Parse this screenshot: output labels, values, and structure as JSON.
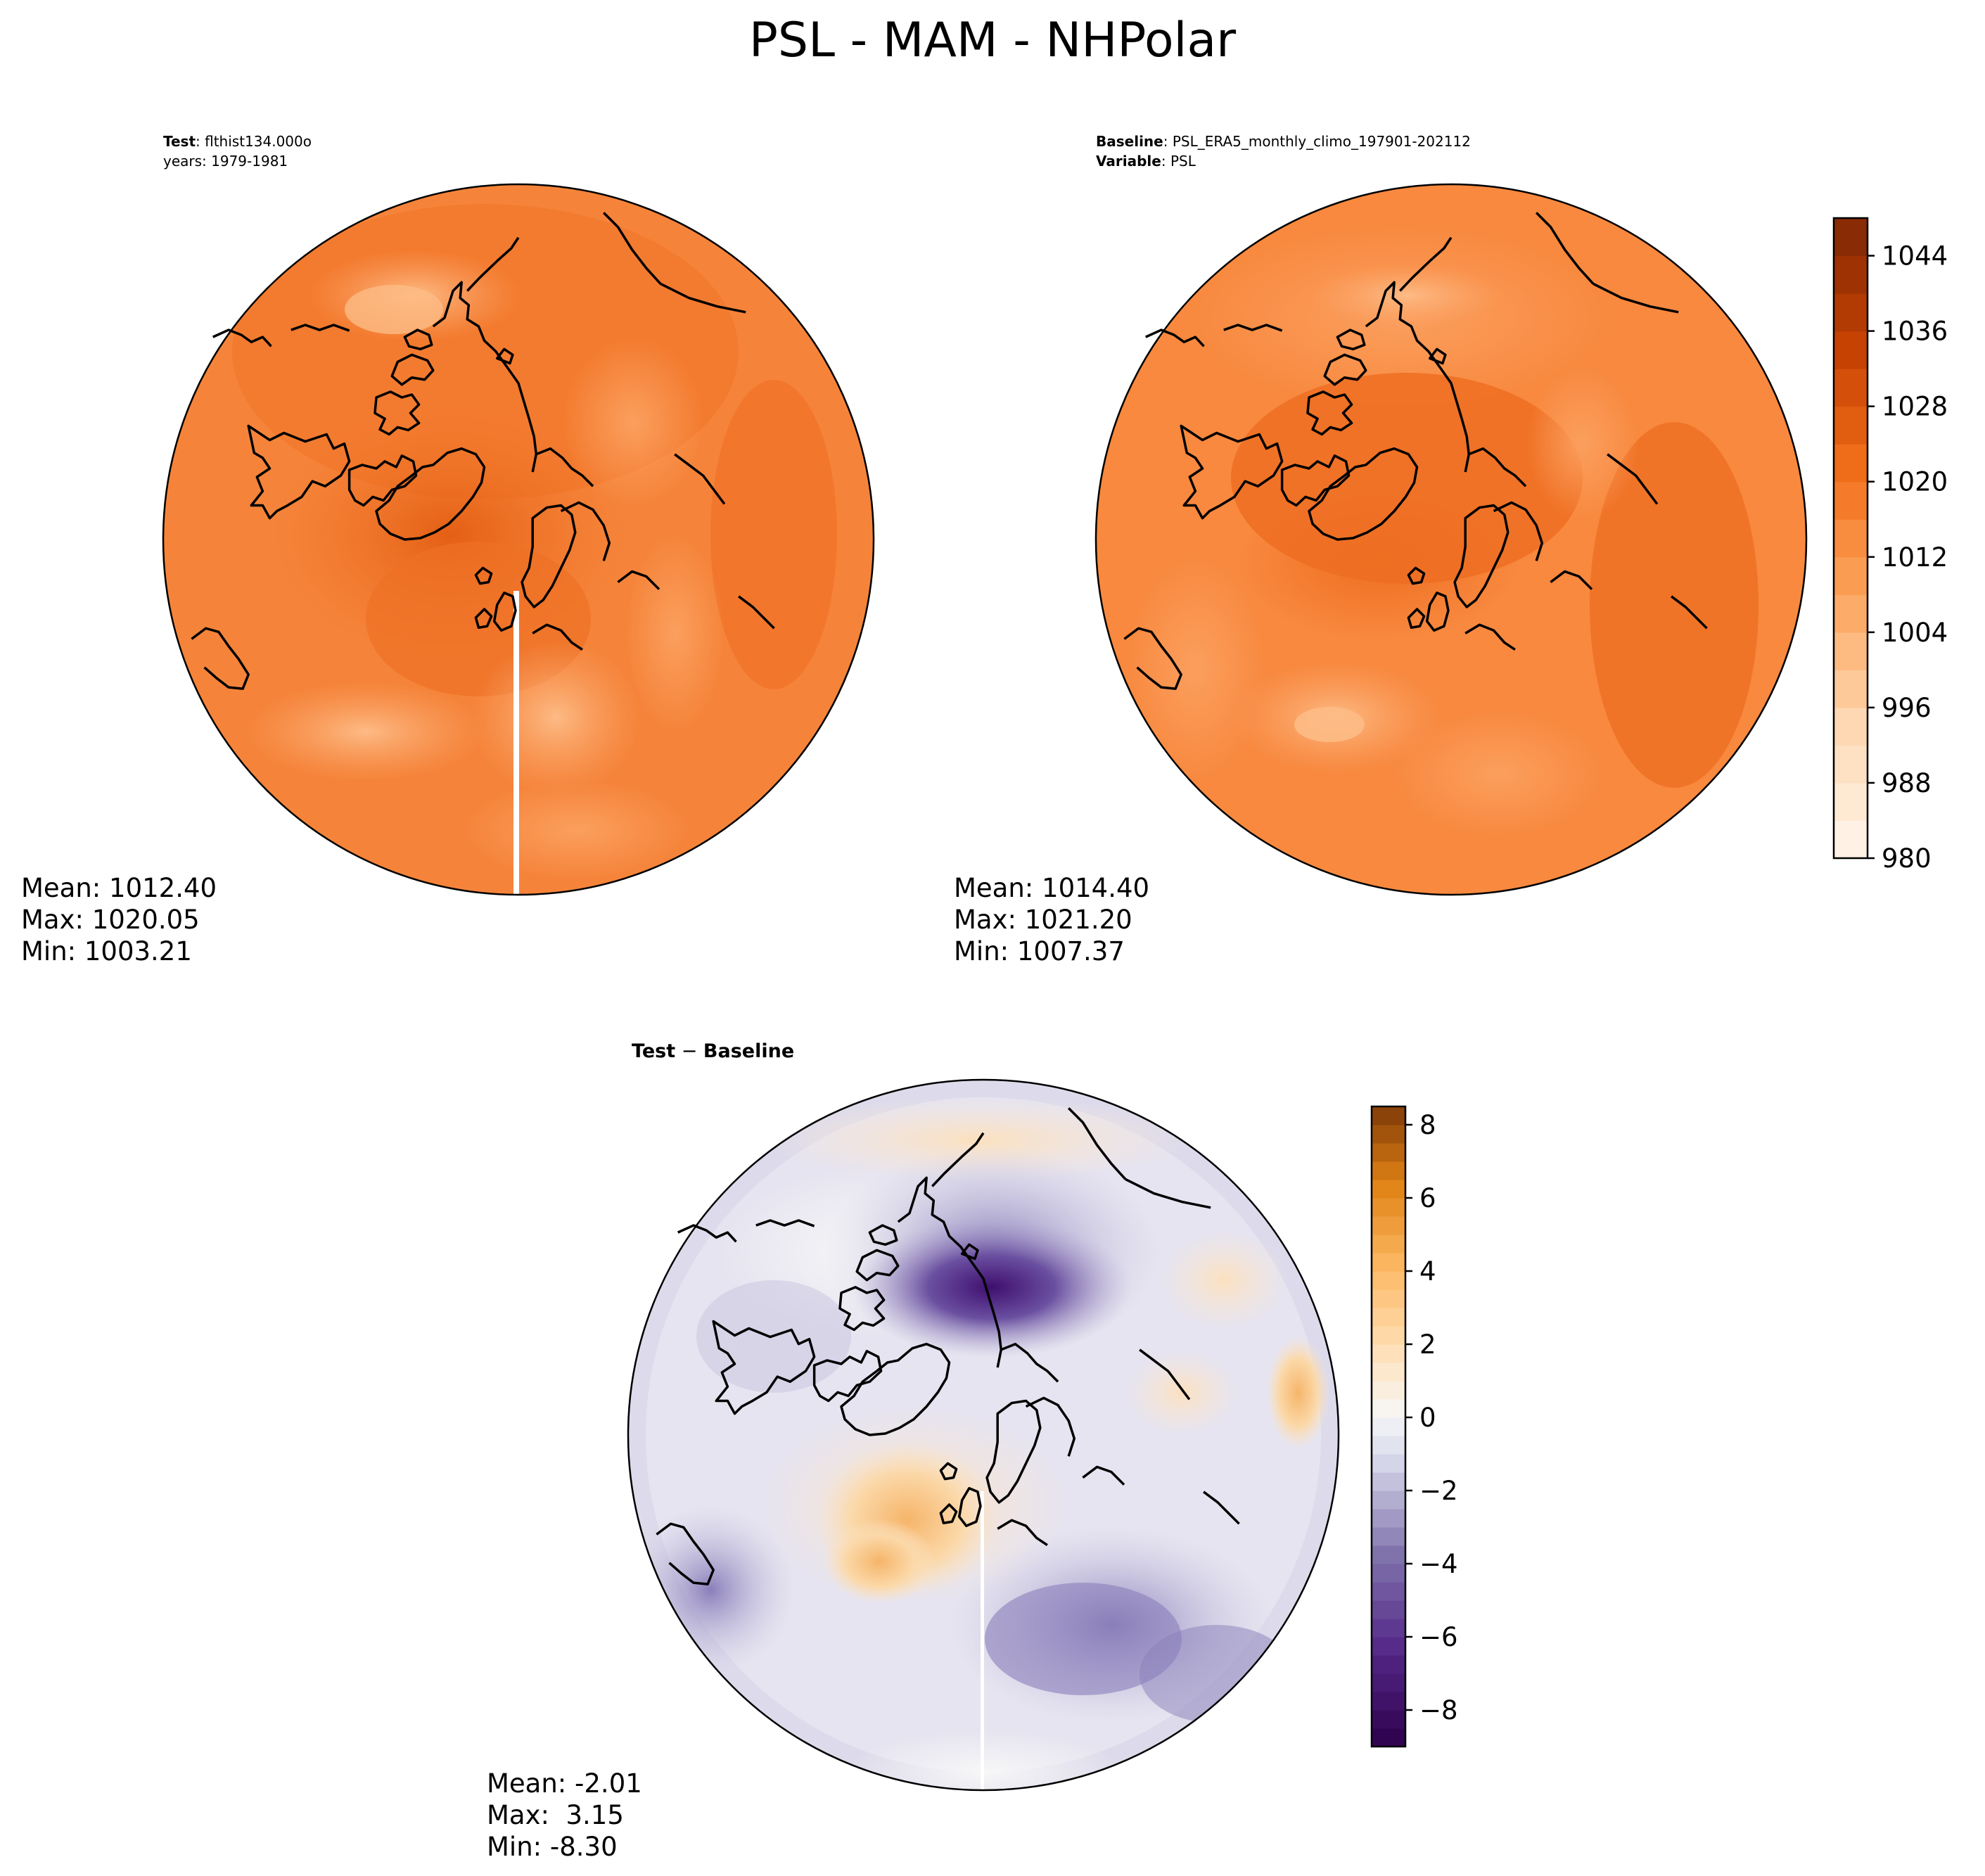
{
  "figure": {
    "title": "PSL - MAM - NHPolar"
  },
  "colors": {
    "ocean_base": "#f5843a",
    "coast": "#000000",
    "diff_neutral": "#f2f1f5"
  },
  "chart_data": [
    {
      "type": "heatmap",
      "name": "test",
      "header": [
        {
          "bold": "Test",
          "rest": ": flthist134.000o"
        },
        {
          "bold": "",
          "rest": "years: 1979-1981"
        }
      ],
      "stats": [
        "Mean: 1012.40",
        "Max: 1020.05",
        "Min: 1003.21"
      ],
      "mean": 1012.4,
      "max": 1020.05,
      "min": 1003.21,
      "colorscale": "Oranges"
    },
    {
      "type": "heatmap",
      "name": "baseline",
      "header": [
        {
          "bold": "Baseline",
          "rest": ": PSL_ERA5_monthly_climo_197901-202112"
        },
        {
          "bold": "Variable",
          "rest": ": PSL"
        }
      ],
      "stats": [
        "Mean: 1014.40",
        "Max: 1021.20",
        "Min: 1007.37"
      ],
      "mean": 1014.4,
      "max": 1021.2,
      "min": 1007.37,
      "colorbar": {
        "range": [
          980,
          1048
        ],
        "step": 4,
        "tick_labels": [
          "980",
          "988",
          "996",
          "1004",
          "1012",
          "1020",
          "1028",
          "1036",
          "1044"
        ],
        "ticks": [
          980,
          988,
          996,
          1004,
          1012,
          1020,
          1028,
          1036,
          1044
        ]
      },
      "colorscale": "Oranges"
    },
    {
      "type": "heatmap",
      "name": "difference",
      "header": [
        {
          "bold": "Test",
          "rest": " − ",
          "bold2": "Baseline"
        }
      ],
      "stats": [
        "Mean: -2.01",
        "Max:  3.15",
        "Min: -8.30"
      ],
      "mean": -2.01,
      "max": 3.15,
      "min": -8.3,
      "colorbar": {
        "range": [
          -9,
          8.5
        ],
        "tick_labels": [
          "−8",
          "−6",
          "−4",
          "−2",
          "0",
          "2",
          "4",
          "6",
          "8"
        ],
        "ticks": [
          -8,
          -6,
          -4,
          -2,
          0,
          2,
          4,
          6,
          8
        ]
      },
      "colorscale": "PuOr_r"
    }
  ]
}
